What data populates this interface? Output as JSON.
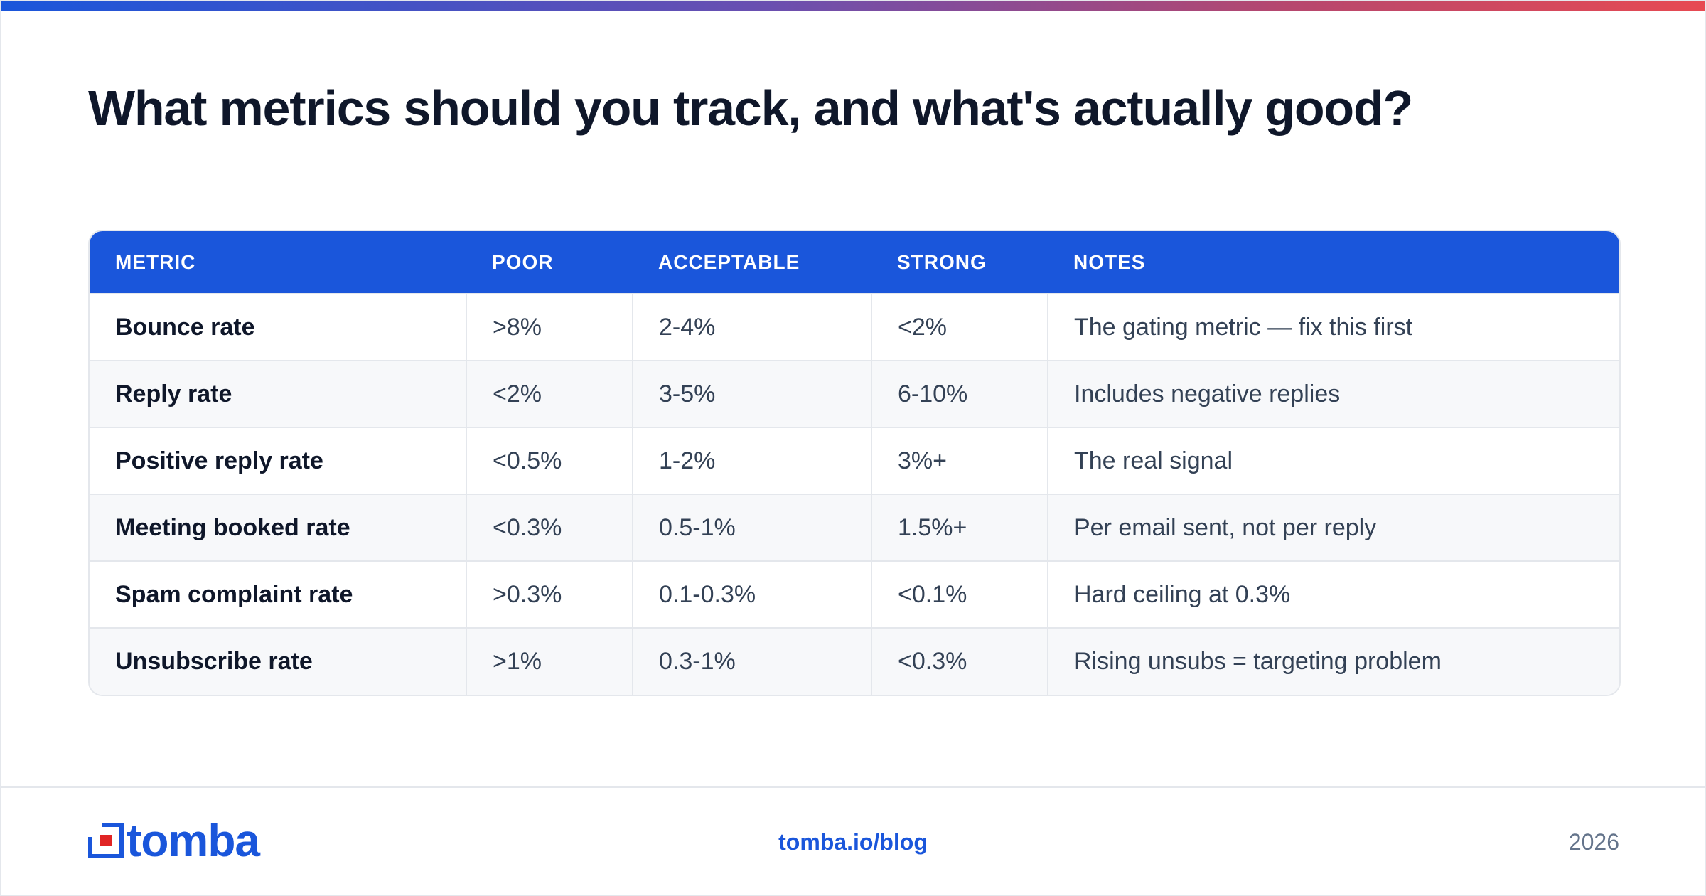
{
  "title": "What metrics should you track, and what's actually good?",
  "colors": {
    "accent": "#1a56db",
    "gradient_end": "#e74a52",
    "text": "#0f172a"
  },
  "table": {
    "headers": [
      "METRIC",
      "POOR",
      "ACCEPTABLE",
      "STRONG",
      "NOTES"
    ],
    "rows": [
      [
        "Bounce rate",
        ">8%",
        "2-4%",
        "<2%",
        "The gating metric — fix this first"
      ],
      [
        "Reply rate",
        "<2%",
        "3-5%",
        "6-10%",
        "Includes negative replies"
      ],
      [
        "Positive reply rate",
        "<0.5%",
        "1-2%",
        "3%+",
        "The real signal"
      ],
      [
        "Meeting booked rate",
        "<0.3%",
        "0.5-1%",
        "1.5%+",
        "Per email sent, not per reply"
      ],
      [
        "Spam complaint rate",
        ">0.3%",
        "0.1-0.3%",
        "<0.1%",
        "Hard ceiling at 0.3%"
      ],
      [
        "Unsubscribe rate",
        ">1%",
        "0.3-1%",
        "<0.3%",
        "Rising unsubs = targeting problem"
      ]
    ]
  },
  "footer": {
    "logo_text": "tomba",
    "logo_icon": "tomba-logo-icon",
    "url": "tomba.io/blog",
    "year": "2026"
  }
}
